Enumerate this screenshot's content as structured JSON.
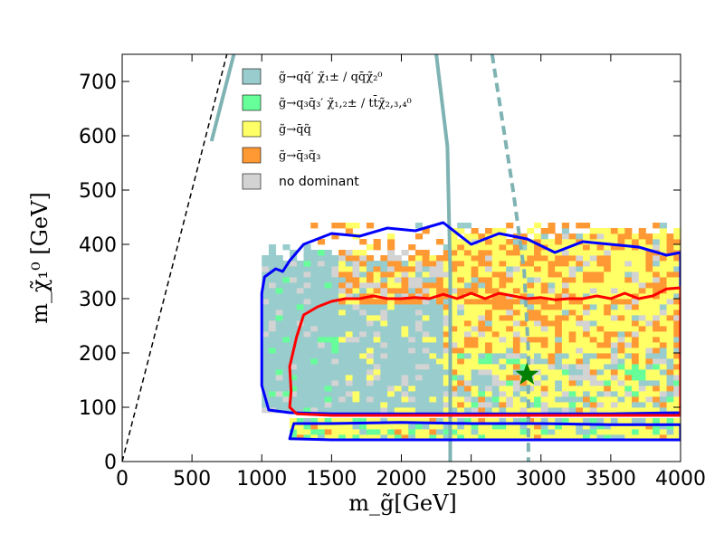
{
  "chart_data": {
    "type": "heatmap",
    "title": "",
    "xlabel": "m_g̃[GeV]",
    "ylabel": "m_χ̃₁⁰ [GeV]",
    "xlim": [
      0,
      4000
    ],
    "ylim": [
      0,
      750
    ],
    "xticks": [
      0,
      500,
      1000,
      1500,
      2000,
      2500,
      3000,
      3500,
      4000
    ],
    "yticks": [
      0,
      100,
      200,
      300,
      400,
      500,
      600,
      700
    ],
    "xtick_labels": [
      "0",
      "500",
      "1000",
      "1500",
      "2000",
      "2500",
      "3000",
      "3500",
      "4000"
    ],
    "ytick_labels": [
      "0",
      "100",
      "200",
      "300",
      "400",
      "500",
      "600",
      "700"
    ],
    "grid": false,
    "legend_position": "top-left",
    "legend": [
      {
        "key": "qq_chargino",
        "label": "g̃→qq̄′ χ̃₁± / qq̄χ̃₂⁰",
        "color": "#99cccc"
      },
      {
        "key": "q3q3_chargino",
        "label": "g̃→q₃q̄₃′ χ̃₁,₂± / tt̄χ̃₂,₃,₄⁰",
        "color": "#66ff99"
      },
      {
        "key": "qq_squark",
        "label": "g̃→q̄q̃",
        "color": "#ffff66"
      },
      {
        "key": "q3_squark",
        "label": "g̃→q̄₃q̃₃",
        "color": "#ff9933"
      },
      {
        "key": "no_dominant",
        "label": "no dominant",
        "color": "#d3d3d3"
      }
    ],
    "regions": [
      {
        "category": "qq_chargino",
        "x": [
          1000,
          2300
        ],
        "y": [
          90,
          380
        ]
      },
      {
        "category": "mixed",
        "x": [
          2300,
          4000
        ],
        "y": [
          90,
          420
        ]
      },
      {
        "category": "mixed_lower_band",
        "x": [
          1200,
          4000
        ],
        "y": [
          40,
          75
        ]
      }
    ],
    "contours": [
      {
        "name": "outer_contour",
        "color": "#0000ff",
        "x": [
          1000,
          1020,
          1100,
          1150,
          1200,
          1250,
          1300,
          1400,
          1500,
          1700,
          1900,
          2100,
          2300,
          2500,
          2700,
          2900,
          3100,
          3300,
          3500,
          3700,
          3900,
          4000,
          4000,
          3500,
          3000,
          2500,
          2000,
          1500,
          1200,
          1050,
          1000,
          1000
        ],
        "y": [
          310,
          340,
          355,
          350,
          370,
          385,
          400,
          410,
          420,
          415,
          430,
          425,
          440,
          400,
          420,
          410,
          385,
          405,
          400,
          395,
          380,
          385,
          90,
          88,
          88,
          88,
          88,
          88,
          90,
          95,
          140,
          310
        ]
      },
      {
        "name": "inner_contour",
        "color": "#ff0000",
        "x": [
          1200,
          1250,
          1300,
          1400,
          1500,
          1600,
          1700,
          1800,
          1900,
          2000,
          2100,
          2200,
          2300,
          2400,
          2500,
          2600,
          2700,
          2800,
          2900,
          3000,
          3100,
          3200,
          3300,
          3400,
          3500,
          3600,
          3700,
          3800,
          3900,
          4000,
          4000,
          3000,
          2000,
          1500,
          1250,
          1200,
          1210,
          1200
        ],
        "y": [
          175,
          230,
          270,
          285,
          295,
          300,
          300,
          305,
          300,
          300,
          302,
          300,
          308,
          300,
          310,
          300,
          310,
          305,
          300,
          302,
          298,
          300,
          300,
          305,
          300,
          310,
          300,
          305,
          318,
          320,
          85,
          85,
          85,
          85,
          88,
          100,
          130,
          175
        ]
      },
      {
        "name": "lower_band_contour",
        "color": "#0000ff",
        "x": [
          1200,
          1500,
          2000,
          2500,
          3000,
          3500,
          4000,
          4000,
          3500,
          3000,
          2500,
          2000,
          1500,
          1230,
          1200
        ],
        "y": [
          42,
          40,
          40,
          40,
          40,
          40,
          40,
          68,
          68,
          70,
          70,
          72,
          70,
          70,
          42
        ]
      }
    ],
    "reference_lines": [
      {
        "name": "diagonal",
        "style": "dashed",
        "color": "#000000",
        "x": [
          0,
          750
        ],
        "y": [
          0,
          750
        ]
      },
      {
        "name": "limit_solid_left",
        "style": "solid",
        "color": "#7fb3b3",
        "x": [
          640,
          700,
          800
        ],
        "y": [
          590,
          650,
          750
        ]
      },
      {
        "name": "limit_solid_right",
        "style": "solid",
        "color": "#7fb3b3",
        "x": [
          2250,
          2330,
          2350,
          2350
        ],
        "y": [
          750,
          580,
          350,
          0
        ]
      },
      {
        "name": "limit_dashed",
        "style": "dashed",
        "color": "#7fb3b3",
        "x": [
          2650,
          2800,
          2880,
          2910,
          2910
        ],
        "y": [
          750,
          500,
          350,
          200,
          0
        ]
      }
    ],
    "marker": {
      "name": "benchmark_star",
      "x": 2900,
      "y": 160,
      "color": "#008000",
      "symbol": "star"
    }
  }
}
